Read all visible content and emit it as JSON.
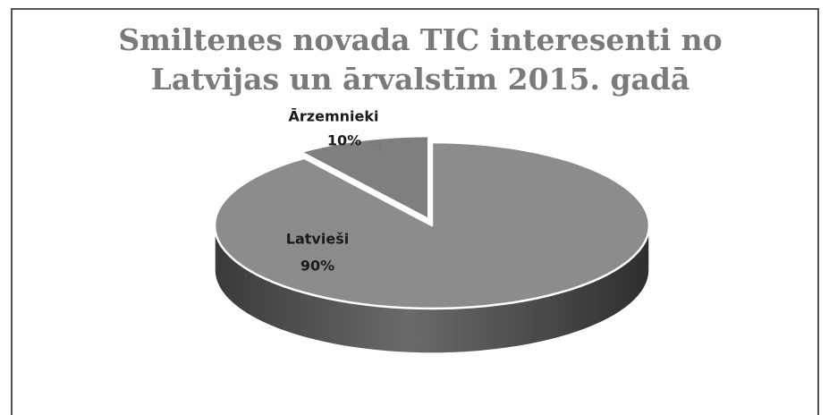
{
  "chart_data": {
    "type": "pie",
    "title": "Smiltenes novada TIC interesenti no Latvijas un ārvalstīm 2015. gadā",
    "title_lines": [
      "Smiltenes novada TIC interesenti no",
      "Latvijas un ārvalstīm 2015. gadā"
    ],
    "categories": [
      "Ārzemnieki",
      "Latvieši"
    ],
    "values": [
      10,
      90
    ],
    "value_labels": [
      "10%",
      "90%"
    ],
    "colors": [
      "#7f7f7f",
      "#8c8c8c"
    ]
  }
}
